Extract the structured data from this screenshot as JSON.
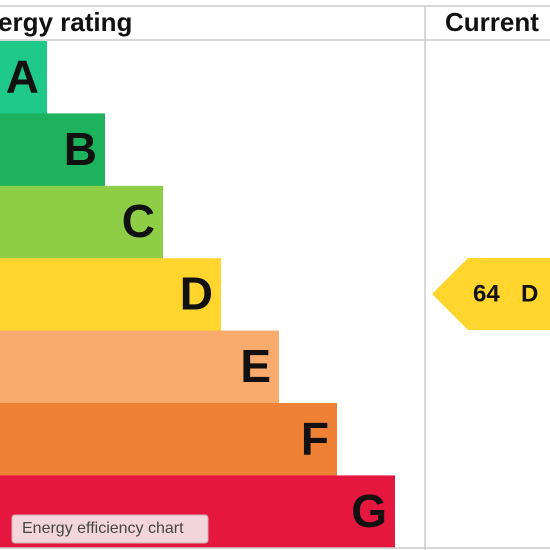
{
  "header": {
    "title": "ergy rating",
    "current_heading": "Current"
  },
  "bands": [
    {
      "letter": "A",
      "color": "#1fc98a"
    },
    {
      "letter": "B",
      "color": "#1cb35c"
    },
    {
      "letter": "C",
      "color": "#8dce46"
    },
    {
      "letter": "D",
      "color": "#ffd52e"
    },
    {
      "letter": "E",
      "color": "#f8ab6c"
    },
    {
      "letter": "F",
      "color": "#ee8136"
    },
    {
      "letter": "G",
      "color": "#e5173f"
    }
  ],
  "current": {
    "score": "64",
    "band": "D",
    "color": "#ffd52e"
  },
  "caption": "Energy efficiency chart"
}
